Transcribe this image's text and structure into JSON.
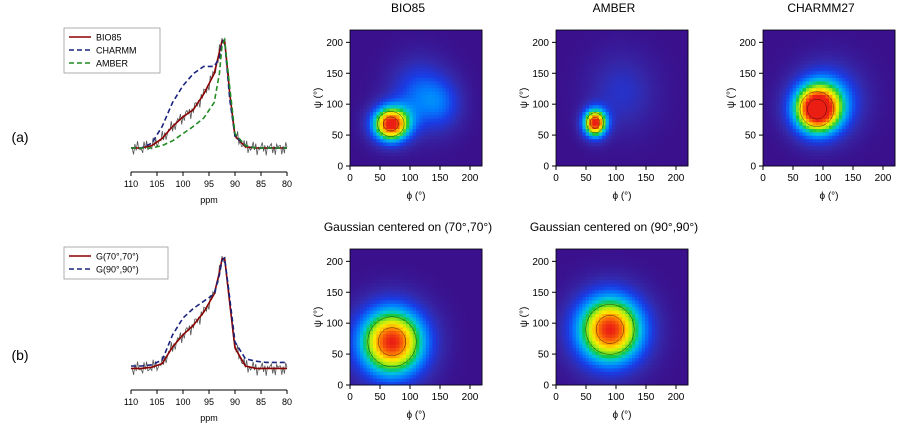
{
  "figure": {
    "row_labels": [
      "(a)",
      "(b)"
    ]
  },
  "colors": {
    "bio85": "#8b0000",
    "charmm": "#1a237e",
    "amber": "#228b22",
    "g7070": "#8b0000",
    "g9090": "#1a237e",
    "experimental": "#555555",
    "contour_line": "#000000"
  },
  "chart_data": [
    {
      "id": "spectrum-a",
      "type": "line",
      "xlabel": "ppm",
      "ylabel": "",
      "xlim": [
        110,
        80
      ],
      "x_ticks": [
        110,
        105,
        100,
        95,
        90,
        85,
        80
      ],
      "legend": {
        "placement": "top-left",
        "entries": [
          "BIO85",
          "CHARMM",
          "AMBER"
        ]
      },
      "x": [
        110,
        108,
        106,
        104,
        102,
        100,
        98,
        96,
        94,
        93,
        92.5,
        92,
        91,
        90,
        88,
        86,
        84,
        82,
        80
      ],
      "series": [
        {
          "name": "BIO85",
          "color_key": "bio85",
          "dash": "solid",
          "values": [
            0.1,
            0.1,
            0.12,
            0.18,
            0.28,
            0.36,
            0.42,
            0.55,
            0.72,
            0.9,
            0.99,
            1.0,
            0.55,
            0.2,
            0.11,
            0.1,
            0.1,
            0.1,
            0.1
          ]
        },
        {
          "name": "CHARMM",
          "color_key": "charmm",
          "dash": "dashed",
          "values": [
            0.1,
            0.1,
            0.14,
            0.28,
            0.48,
            0.62,
            0.72,
            0.78,
            0.78,
            0.85,
            0.98,
            1.0,
            0.5,
            0.2,
            0.12,
            0.1,
            0.1,
            0.1,
            0.1
          ]
        },
        {
          "name": "AMBER",
          "color_key": "amber",
          "dash": "dashed",
          "values": [
            0.1,
            0.1,
            0.1,
            0.12,
            0.16,
            0.22,
            0.28,
            0.35,
            0.48,
            0.72,
            0.95,
            1.0,
            0.6,
            0.22,
            0.12,
            0.1,
            0.1,
            0.1,
            0.1
          ]
        }
      ]
    },
    {
      "id": "spectrum-b",
      "type": "line",
      "xlabel": "ppm",
      "ylabel": "",
      "xlim": [
        110,
        80
      ],
      "x_ticks": [
        110,
        105,
        100,
        95,
        90,
        85,
        80
      ],
      "legend": {
        "placement": "top-left",
        "entries": [
          "G(70°,70°)",
          "G(90°,90°)"
        ]
      },
      "x": [
        110,
        108,
        106,
        104,
        102,
        100,
        98,
        96,
        94,
        93,
        92.5,
        92,
        91,
        90,
        88,
        86,
        84,
        82,
        80
      ],
      "series": [
        {
          "name": "G(70°,70°)",
          "color_key": "g7070",
          "dash": "solid",
          "values": [
            0.08,
            0.08,
            0.09,
            0.12,
            0.26,
            0.36,
            0.44,
            0.55,
            0.7,
            0.88,
            0.99,
            1.0,
            0.62,
            0.25,
            0.1,
            0.08,
            0.08,
            0.08,
            0.08
          ]
        },
        {
          "name": "G(90°,90°)",
          "color_key": "g9090",
          "dash": "dashed",
          "values": [
            0.1,
            0.1,
            0.11,
            0.15,
            0.36,
            0.5,
            0.58,
            0.64,
            0.7,
            0.86,
            0.98,
            1.0,
            0.66,
            0.3,
            0.16,
            0.14,
            0.13,
            0.13,
            0.13
          ]
        }
      ]
    },
    {
      "id": "map-bio85",
      "type": "heatmap",
      "title": "BIO85",
      "xlabel": "ϕ (°)",
      "ylabel": "ψ (°)",
      "xlim": [
        0,
        220
      ],
      "ylim": [
        0,
        220
      ],
      "x_ticks": [
        0,
        50,
        100,
        150,
        200
      ],
      "y_ticks": [
        0,
        50,
        100,
        150,
        200
      ],
      "peaks": [
        {
          "x": 68,
          "y": 68,
          "sx": 22,
          "sy": 20,
          "amp": 1.0
        },
        {
          "x": 115,
          "y": 115,
          "sx": 35,
          "sy": 40,
          "amp": 0.28
        },
        {
          "x": 155,
          "y": 100,
          "sx": 25,
          "sy": 30,
          "amp": 0.18
        }
      ]
    },
    {
      "id": "map-amber",
      "type": "heatmap",
      "title": "AMBER",
      "xlabel": "ϕ (°)",
      "ylabel": "ψ (°)",
      "xlim": [
        0,
        220
      ],
      "ylim": [
        0,
        220
      ],
      "x_ticks": [
        0,
        50,
        100,
        150,
        200
      ],
      "y_ticks": [
        0,
        50,
        100,
        150,
        200
      ],
      "peaks": [
        {
          "x": 65,
          "y": 70,
          "sx": 14,
          "sy": 16,
          "amp": 1.0
        },
        {
          "x": 110,
          "y": 120,
          "sx": 40,
          "sy": 45,
          "amp": 0.16
        }
      ]
    },
    {
      "id": "map-charmm27",
      "type": "heatmap",
      "title": "CHARMM27",
      "xlabel": "ϕ (°)",
      "ylabel": "ψ (°)",
      "xlim": [
        0,
        220
      ],
      "ylim": [
        0,
        220
      ],
      "x_ticks": [
        0,
        50,
        100,
        150,
        200
      ],
      "y_ticks": [
        0,
        50,
        100,
        150,
        200
      ],
      "peaks": [
        {
          "x": 90,
          "y": 92,
          "sx": 28,
          "sy": 28,
          "amp": 1.0
        },
        {
          "x": 110,
          "y": 110,
          "sx": 40,
          "sy": 40,
          "amp": 0.3
        }
      ]
    },
    {
      "id": "map-g7070",
      "type": "heatmap",
      "title": "Gaussian centered on (70°,70°)",
      "xlabel": "ϕ (°)",
      "ylabel": "ψ (°)",
      "xlim": [
        0,
        220
      ],
      "ylim": [
        0,
        220
      ],
      "x_ticks": [
        0,
        50,
        100,
        150,
        200
      ],
      "y_ticks": [
        0,
        50,
        100,
        150,
        200
      ],
      "peaks": [
        {
          "x": 70,
          "y": 70,
          "sx": 40,
          "sy": 40,
          "amp": 1.0
        }
      ]
    },
    {
      "id": "map-g9090",
      "type": "heatmap",
      "title": "Gaussian centered on (90°,90°)",
      "xlabel": "ϕ (°)",
      "ylabel": "ψ (°)",
      "xlim": [
        0,
        220
      ],
      "ylim": [
        0,
        220
      ],
      "x_ticks": [
        0,
        50,
        100,
        150,
        200
      ],
      "y_ticks": [
        0,
        50,
        100,
        150,
        200
      ],
      "peaks": [
        {
          "x": 90,
          "y": 90,
          "sx": 40,
          "sy": 40,
          "amp": 1.0
        }
      ]
    }
  ]
}
